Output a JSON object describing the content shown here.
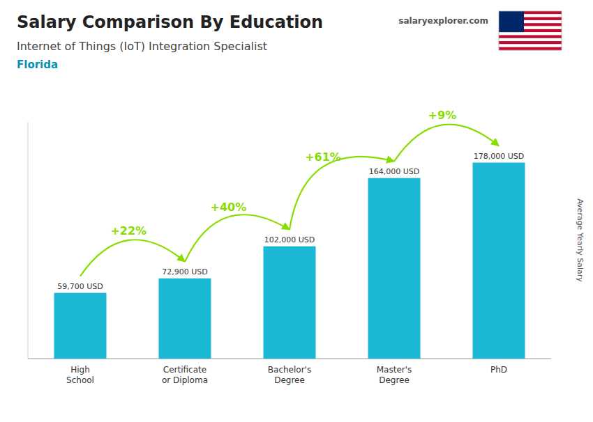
{
  "chart_data": {
    "type": "bar",
    "title": "Salary Comparison By Education",
    "subtitle": "Internet of Things (IoT) Integration Specialist",
    "location": "Florida",
    "source": "salaryexplorer.com",
    "ylabel": "Average Yearly Salary",
    "categories": [
      "High\nSchool",
      "Certificate\nor Diploma",
      "Bachelor's\nDegree",
      "Master's\nDegree",
      "PhD"
    ],
    "values": [
      59700,
      72900,
      102000,
      164000,
      178000
    ],
    "value_labels": [
      "59,700 USD",
      "72,900 USD",
      "102,000 USD",
      "164,000 USD",
      "178,000 USD"
    ],
    "data_labels": true,
    "color": "#1ab8d4",
    "ylim": [
      0,
      215000
    ],
    "tick_labels": "x",
    "grid": false,
    "annotations": [
      {
        "text": "+22%",
        "color": "#88dd00"
      },
      {
        "text": "+40%",
        "color": "#88dd00"
      },
      {
        "text": "+61%",
        "color": "#88dd00"
      },
      {
        "text": "+9%",
        "color": "#88dd00"
      }
    ]
  }
}
